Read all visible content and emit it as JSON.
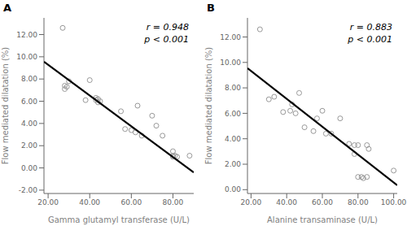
{
  "chart_data": [
    {
      "type": "scatter",
      "title": "A",
      "annotations": [
        "r = 0.948",
        "p < 0.001"
      ],
      "x_label": "Gamma glutamyl transferase (U/L)",
      "y_label": "Flow mediated dilatation (%)",
      "series": [
        {
          "type": "scatter",
          "color": "#999999",
          "marker": "circle_open",
          "x": [
            27,
            28,
            28,
            29,
            30,
            38,
            40,
            43,
            43,
            44,
            44,
            45,
            55,
            57,
            60,
            62,
            63,
            65,
            70,
            72,
            75,
            80,
            80,
            80,
            81,
            82,
            88
          ],
          "values": [
            12.6,
            7.1,
            7.4,
            7.3,
            7.8,
            6.1,
            7.9,
            6.3,
            6.1,
            6.2,
            5.9,
            6.0,
            5.1,
            3.5,
            3.4,
            3.2,
            5.6,
            2.9,
            4.7,
            3.8,
            2.9,
            1.5,
            1.1,
            1.0,
            1.1,
            1.0,
            1.1
          ]
        },
        {
          "type": "line",
          "color": "#000000",
          "line_style": "solid",
          "x": [
            18,
            90
          ],
          "values": [
            9.55,
            -0.4
          ]
        }
      ],
      "xlim": [
        18,
        90
      ],
      "ylim": [
        -2.3,
        13.5
      ],
      "xticks": [
        {
          "value": 20,
          "label": "20.00"
        },
        {
          "value": 40,
          "label": "40.00"
        },
        {
          "value": 60,
          "label": "60.00"
        },
        {
          "value": 80,
          "label": "80.00"
        }
      ],
      "yticks": [
        {
          "value": -2,
          "label": "-2.00"
        },
        {
          "value": 0,
          "label": "0.00"
        },
        {
          "value": 2,
          "label": "2.00"
        },
        {
          "value": 4,
          "label": "4.00"
        },
        {
          "value": 6,
          "label": "6.00"
        },
        {
          "value": 8,
          "label": "8.00"
        },
        {
          "value": 10,
          "label": "10.00"
        },
        {
          "value": 12,
          "label": "12.00"
        }
      ],
      "grid": false
    },
    {
      "type": "scatter",
      "title": "B",
      "annotations": [
        "r = 0.883",
        "p < 0.001"
      ],
      "x_label": "Alanine transaminase (U/L)",
      "y_label": "Flow mediated dilatation (%)",
      "series": [
        {
          "type": "scatter",
          "color": "#999999",
          "marker": "circle_open",
          "x": [
            25,
            30,
            33,
            38,
            42,
            43,
            45,
            47,
            50,
            55,
            57,
            60,
            62,
            65,
            70,
            75,
            78,
            78,
            80,
            80,
            82,
            83,
            85,
            85,
            86,
            100
          ],
          "values": [
            12.6,
            7.1,
            7.3,
            6.1,
            6.2,
            6.7,
            6.0,
            7.6,
            4.9,
            4.6,
            5.6,
            6.2,
            4.4,
            4.4,
            5.6,
            3.6,
            2.8,
            3.5,
            3.5,
            1.0,
            1.0,
            0.9,
            1.0,
            3.5,
            3.2,
            1.5
          ]
        },
        {
          "type": "line",
          "color": "#000000",
          "line_style": "solid",
          "x": [
            18,
            102
          ],
          "values": [
            9.55,
            0.35
          ]
        }
      ],
      "xlim": [
        18,
        102
      ],
      "ylim": [
        -0.3,
        13.5
      ],
      "xticks": [
        {
          "value": 20,
          "label": "20.00"
        },
        {
          "value": 40,
          "label": "40.00"
        },
        {
          "value": 60,
          "label": "60.00"
        },
        {
          "value": 80,
          "label": "80.00"
        },
        {
          "value": 100,
          "label": "100.00"
        }
      ],
      "yticks": [
        {
          "value": 0,
          "label": "0.00"
        },
        {
          "value": 2,
          "label": "2.00"
        },
        {
          "value": 4,
          "label": "4.00"
        },
        {
          "value": 6,
          "label": "6.00"
        },
        {
          "value": 8,
          "label": "8.00"
        },
        {
          "value": 10,
          "label": "10.00"
        },
        {
          "value": 12,
          "label": "12.00"
        }
      ],
      "grid": false
    }
  ]
}
